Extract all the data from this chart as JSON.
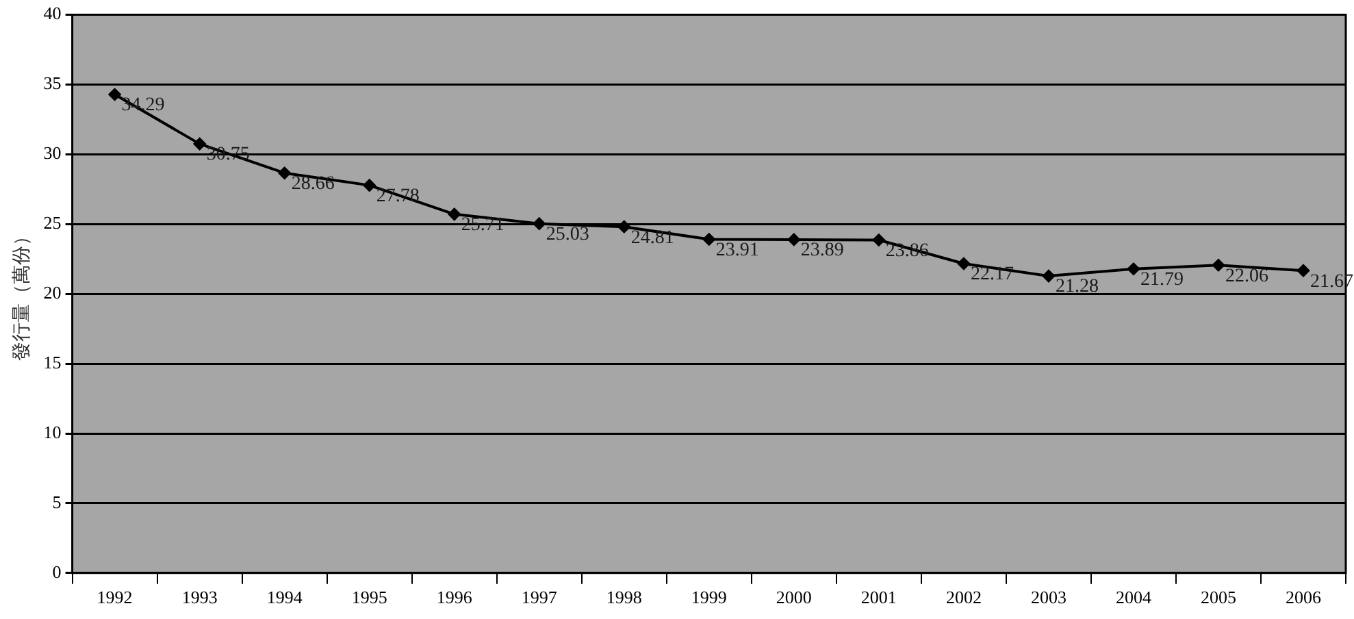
{
  "chart_data": {
    "type": "line",
    "ylabel": "發行量（萬份）",
    "categories": [
      "1992",
      "1993",
      "1994",
      "1995",
      "1996",
      "1997",
      "1998",
      "1999",
      "2000",
      "2001",
      "2002",
      "2003",
      "2004",
      "2005",
      "2006"
    ],
    "series": [
      {
        "color": "#000000",
        "values": [
          34.29,
          30.75,
          28.66,
          27.78,
          25.71,
          25.03,
          24.81,
          23.91,
          23.89,
          23.86,
          22.17,
          21.28,
          21.79,
          22.06,
          21.67
        ]
      }
    ],
    "ylim": [
      0,
      40
    ],
    "yticks": [
      0,
      5,
      10,
      15,
      20,
      25,
      30,
      35,
      40
    ],
    "grid": "y",
    "marker": "diamond",
    "line_style": "solid",
    "data_labels": true
  }
}
